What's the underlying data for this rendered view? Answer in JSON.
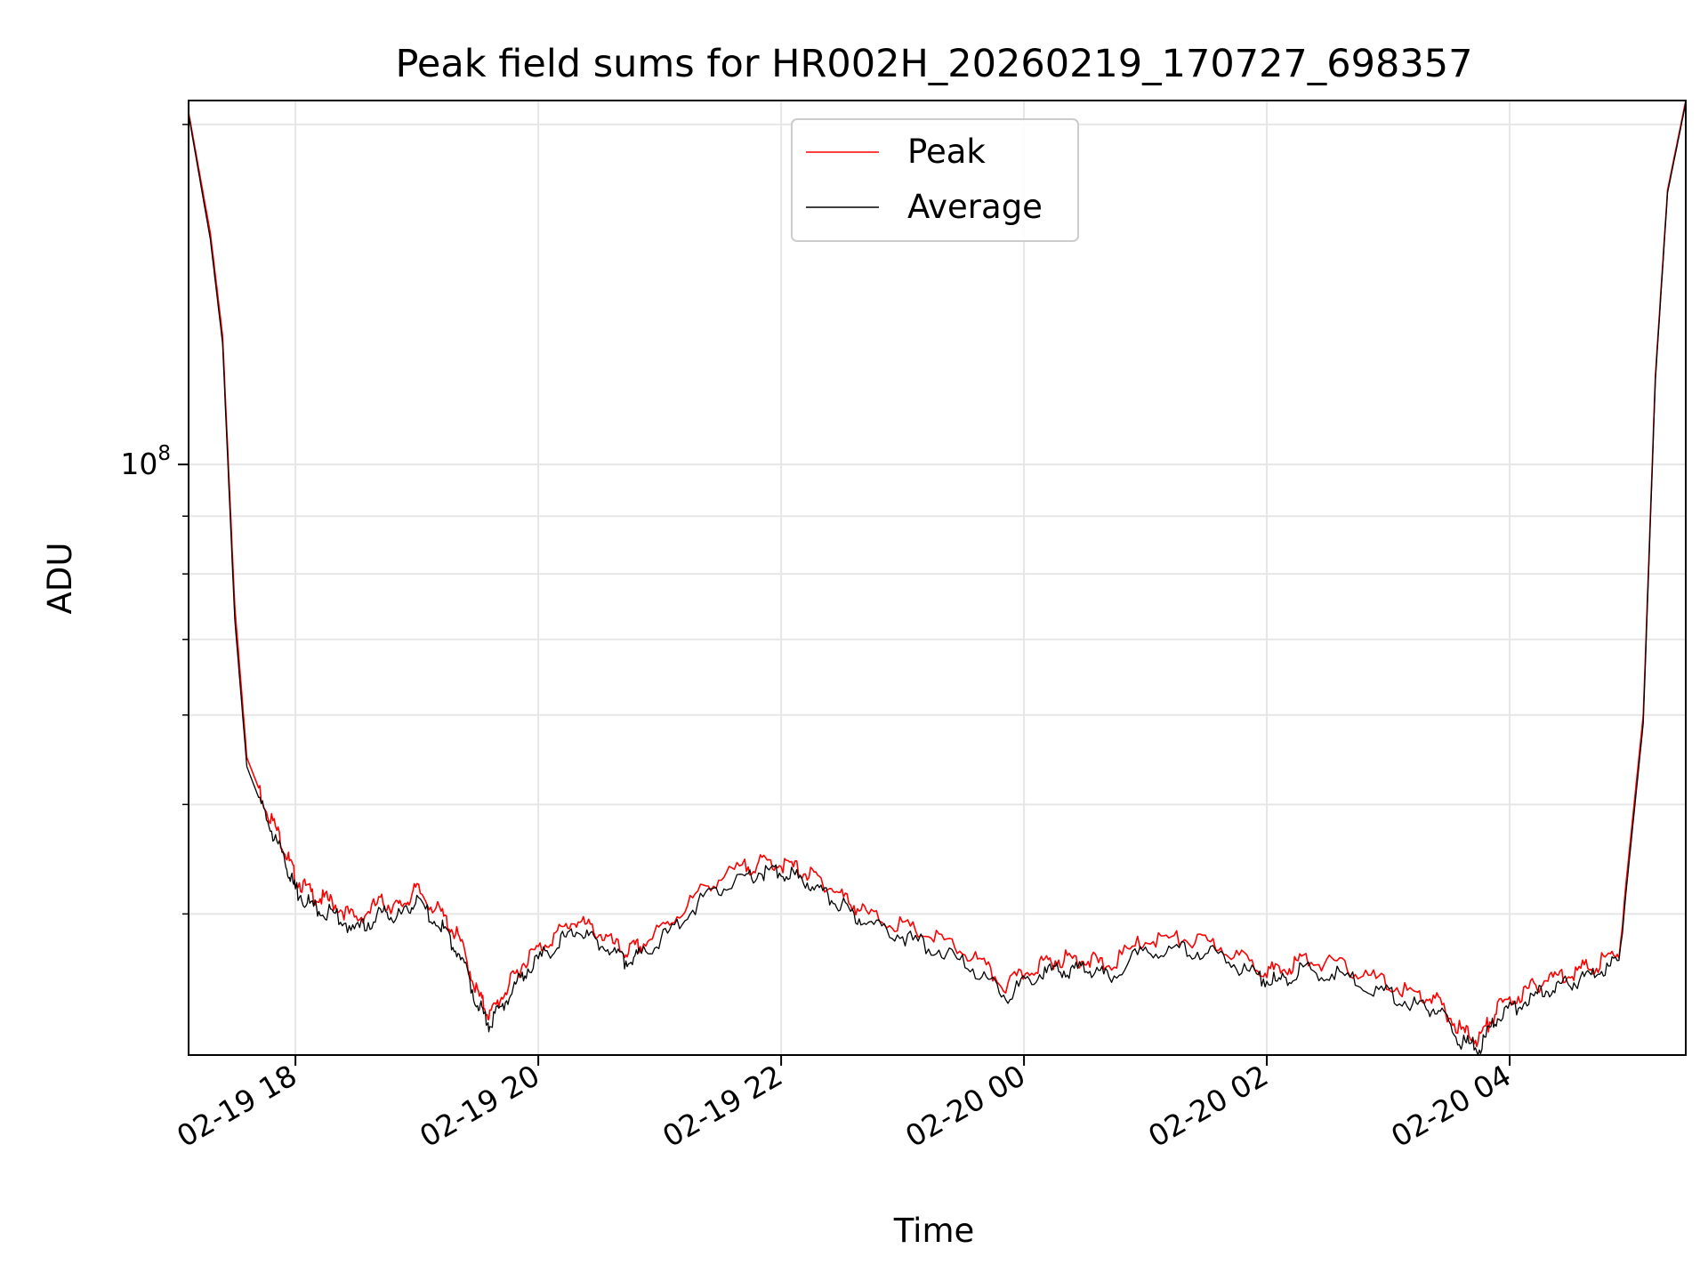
{
  "chart_data": {
    "type": "line",
    "title": "Peak field sums for HR002H_20260219_170727_698357",
    "xlabel": "Time",
    "ylabel": "ADU",
    "yscale": "log",
    "grid": true,
    "legend_position": "upper center",
    "x_ticks": [
      "02-19 18",
      "02-19 20",
      "02-19 22",
      "02-20 00",
      "02-20 02",
      "02-20 04"
    ],
    "y_tick_labels": [
      {
        "base": "10",
        "exp": "8",
        "value": 100000000
      }
    ],
    "xlim_hours": [
      17.12,
      29.45
    ],
    "ylim": [
      30000000,
      210000000
    ],
    "series": [
      {
        "name": "Peak",
        "color": "#ff0000",
        "x_hours": [
          17.12,
          17.3,
          17.4,
          17.5,
          17.6,
          17.75,
          17.9,
          18.0,
          18.15,
          18.3,
          18.5,
          18.7,
          18.85,
          19.0,
          19.2,
          19.35,
          19.5,
          19.6,
          19.75,
          19.9,
          20.1,
          20.3,
          20.5,
          20.7,
          20.85,
          21.1,
          21.4,
          21.7,
          21.9,
          22.1,
          22.3,
          22.5,
          22.7,
          23.0,
          23.3,
          23.6,
          23.85,
          24.1,
          24.3,
          24.5,
          24.7,
          25.0,
          25.3,
          25.6,
          25.9,
          26.1,
          26.3,
          26.6,
          26.9,
          27.2,
          27.4,
          27.6,
          27.75,
          27.9,
          28.1,
          28.3,
          28.5,
          28.7,
          28.9,
          29.1,
          29.2,
          29.3,
          29.45
        ],
        "values": [
          205000000,
          160000000,
          130000000,
          75000000,
          55000000,
          50000000,
          46000000,
          43000000,
          41500000,
          41000000,
          39500000,
          41000000,
          40500000,
          42000000,
          40000000,
          38000000,
          34000000,
          32500000,
          34500000,
          36500000,
          38000000,
          39500000,
          38500000,
          37000000,
          37500000,
          39500000,
          42500000,
          44000000,
          44500000,
          44000000,
          43000000,
          41500000,
          40000000,
          39000000,
          38000000,
          36500000,
          34500000,
          36000000,
          36500000,
          36500000,
          36000000,
          38000000,
          38000000,
          37500000,
          36000000,
          35500000,
          36500000,
          36000000,
          35000000,
          34000000,
          33500000,
          31500000,
          31000000,
          33000000,
          34000000,
          35000000,
          35500000,
          36000000,
          37000000,
          60000000,
          120000000,
          175000000,
          210000000
        ]
      },
      {
        "name": "Average",
        "color": "#000000",
        "x_hours": [
          17.12,
          17.3,
          17.4,
          17.5,
          17.6,
          17.75,
          17.9,
          18.0,
          18.15,
          18.3,
          18.5,
          18.7,
          18.85,
          19.0,
          19.2,
          19.35,
          19.5,
          19.6,
          19.75,
          19.9,
          20.1,
          20.3,
          20.5,
          20.7,
          20.85,
          21.1,
          21.4,
          21.7,
          21.9,
          22.1,
          22.3,
          22.5,
          22.7,
          23.0,
          23.3,
          23.6,
          23.85,
          24.1,
          24.3,
          24.5,
          24.7,
          25.0,
          25.3,
          25.6,
          25.9,
          26.1,
          26.3,
          26.6,
          26.9,
          27.2,
          27.4,
          27.6,
          27.75,
          27.9,
          28.1,
          28.3,
          28.5,
          28.7,
          28.9,
          29.1,
          29.2,
          29.3,
          29.45
        ],
        "values": [
          204000000,
          158000000,
          128000000,
          73000000,
          54000000,
          49000000,
          45000000,
          42000000,
          40500000,
          40000000,
          38700000,
          40000000,
          39700000,
          41000000,
          39000000,
          37000000,
          33300000,
          31900000,
          33800000,
          35700000,
          37200000,
          38700000,
          37700000,
          36300000,
          36800000,
          38700000,
          41700000,
          43200000,
          43700000,
          43200000,
          42200000,
          40700000,
          39200000,
          38200000,
          37200000,
          35700000,
          33800000,
          35300000,
          35700000,
          35700000,
          35300000,
          37200000,
          37200000,
          36800000,
          35300000,
          34800000,
          35700000,
          35300000,
          34300000,
          33300000,
          32900000,
          30900000,
          30400000,
          32400000,
          33300000,
          34300000,
          34800000,
          35300000,
          36300000,
          59000000,
          119000000,
          174000000,
          209000000
        ]
      }
    ]
  }
}
